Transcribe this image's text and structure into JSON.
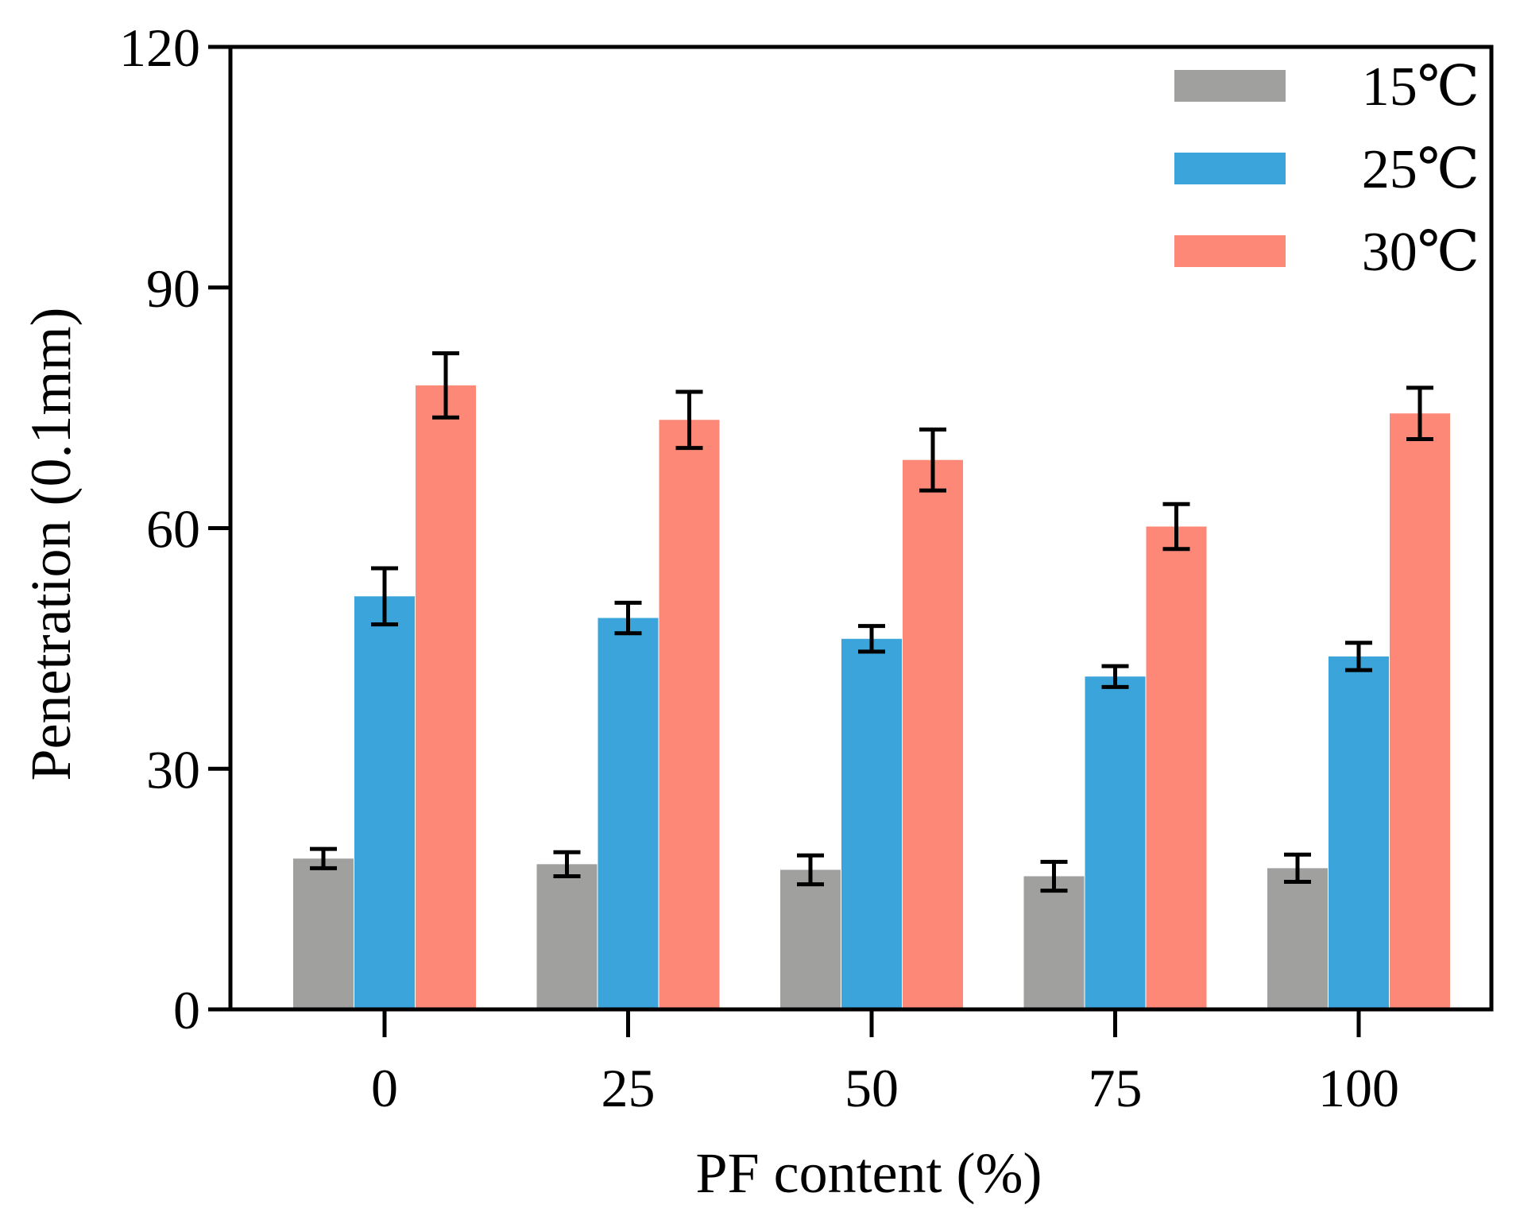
{
  "chart_data": {
    "type": "bar",
    "title": "",
    "xlabel": "PF content (%)",
    "ylabel": "Penetration (0.1mm)",
    "categories": [
      "0",
      "25",
      "50",
      "75",
      "100"
    ],
    "ylim": [
      0,
      120
    ],
    "yticks": [
      "0",
      "30",
      "60",
      "90",
      "120"
    ],
    "grid": false,
    "legend_position": "top-right",
    "series": [
      {
        "name": "15℃",
        "color": "#a0a09f",
        "values": [
          18.8,
          18.1,
          17.4,
          16.6,
          17.6
        ],
        "errors": [
          1.2,
          1.5,
          1.8,
          1.8,
          1.7
        ]
      },
      {
        "name": "25℃",
        "color": "#3ba5db",
        "values": [
          51.5,
          48.8,
          46.2,
          41.5,
          44.0
        ],
        "errors": [
          3.5,
          1.9,
          1.6,
          1.3,
          1.7
        ]
      },
      {
        "name": "30℃",
        "color": "#fd8878",
        "values": [
          77.8,
          73.5,
          68.5,
          60.2,
          74.3
        ],
        "errors": [
          4.0,
          3.5,
          3.8,
          2.8,
          3.2
        ]
      }
    ]
  }
}
